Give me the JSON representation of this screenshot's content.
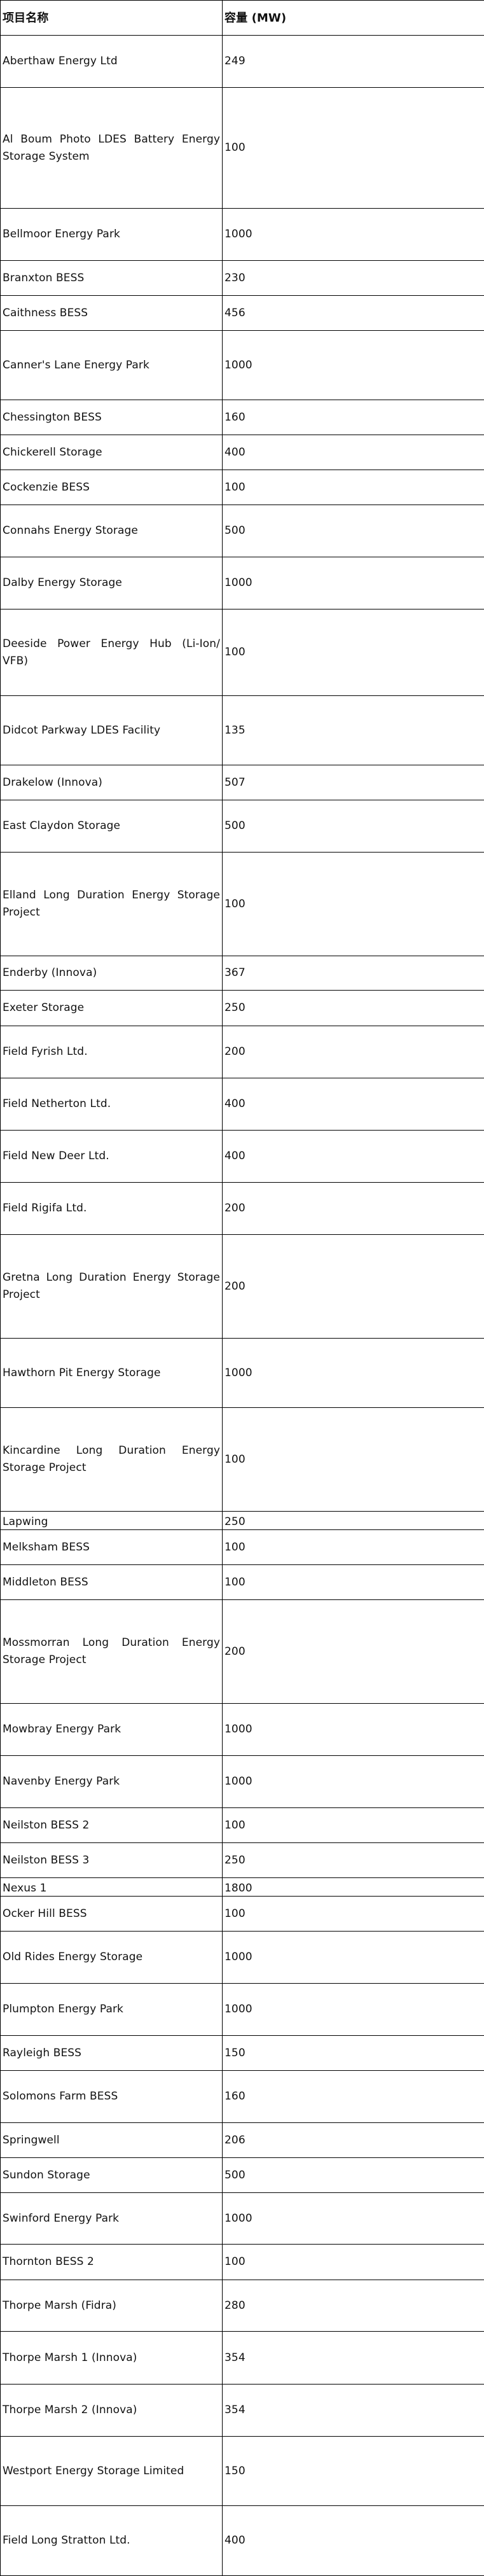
{
  "table": {
    "headers": [
      "项目名称",
      "容量 (MW)"
    ],
    "rows": [
      {
        "name": "Aberthaw Energy Ltd",
        "capacity": "249"
      },
      {
        "name": "Al Boum Photo LDES Battery Energy Storage System",
        "capacity": "100"
      },
      {
        "name": "Bellmoor Energy Park",
        "capacity": "1000"
      },
      {
        "name": "Branxton BESS",
        "capacity": "230"
      },
      {
        "name": "Caithness BESS",
        "capacity": "456"
      },
      {
        "name": "Canner's Lane Energy Park",
        "capacity": "1000"
      },
      {
        "name": "Chessington BESS",
        "capacity": "160"
      },
      {
        "name": "Chickerell Storage",
        "capacity": "400"
      },
      {
        "name": "Cockenzie BESS",
        "capacity": "100"
      },
      {
        "name": "Connahs Energy Storage",
        "capacity": "500"
      },
      {
        "name": "Dalby Energy Storage",
        "capacity": "1000"
      },
      {
        "name": "Deeside Power Energy Hub (Li-Ion/ VFB)",
        "capacity": "100"
      },
      {
        "name": "Didcot Parkway LDES Facility",
        "capacity": "135"
      },
      {
        "name": "Drakelow (Innova)",
        "capacity": "507"
      },
      {
        "name": "East Claydon Storage",
        "capacity": "500"
      },
      {
        "name": "Elland Long Duration Energy Storage Project",
        "capacity": "100"
      },
      {
        "name": "Enderby (Innova)",
        "capacity": "367"
      },
      {
        "name": "Exeter Storage",
        "capacity": "250"
      },
      {
        "name": "Field Fyrish Ltd.",
        "capacity": "200"
      },
      {
        "name": "Field Netherton Ltd.",
        "capacity": "400"
      },
      {
        "name": "Field New Deer Ltd.",
        "capacity": "400"
      },
      {
        "name": "Field Rigifa Ltd.",
        "capacity": "200"
      },
      {
        "name": "Gretna Long Duration Energy Storage Project",
        "capacity": "200"
      },
      {
        "name": "Hawthorn Pit Energy Storage",
        "capacity": "1000"
      },
      {
        "name": "Kincardine Long Duration Energy Storage Project",
        "capacity": "100"
      },
      {
        "name": "Lapwing",
        "capacity": "250"
      },
      {
        "name": "Melksham BESS",
        "capacity": "100"
      },
      {
        "name": "Middleton BESS",
        "capacity": "100"
      },
      {
        "name": "Mossmorran Long Duration Energy Storage Project",
        "capacity": "200"
      },
      {
        "name": "Mowbray Energy Park",
        "capacity": "1000"
      },
      {
        "name": "Navenby Energy Park",
        "capacity": "1000"
      },
      {
        "name": "Neilston BESS 2",
        "capacity": "100"
      },
      {
        "name": "Neilston BESS 3",
        "capacity": "250"
      },
      {
        "name": "Nexus 1",
        "capacity": "1800"
      },
      {
        "name": "Ocker Hill BESS",
        "capacity": "100"
      },
      {
        "name": "Old Rides Energy Storage",
        "capacity": "1000"
      },
      {
        "name": "Plumpton Energy Park",
        "capacity": "1000"
      },
      {
        "name": "Rayleigh BESS",
        "capacity": "150"
      },
      {
        "name": "Solomons Farm BESS",
        "capacity": "160"
      },
      {
        "name": "Springwell",
        "capacity": "206"
      },
      {
        "name": "Sundon Storage",
        "capacity": "500"
      },
      {
        "name": "Swinford Energy Park",
        "capacity": "1000"
      },
      {
        "name": "Thornton BESS 2",
        "capacity": "100"
      },
      {
        "name": "Thorpe Marsh (Fidra)",
        "capacity": "280"
      },
      {
        "name": "Thorpe Marsh 1 (Innova)",
        "capacity": "354"
      },
      {
        "name": "Thorpe Marsh 2 (Innova)",
        "capacity": "354"
      },
      {
        "name": "Westport Energy Storage Limited",
        "capacity": "150"
      },
      {
        "name": "Field Long Stratton Ltd.",
        "capacity": "400"
      }
    ]
  }
}
